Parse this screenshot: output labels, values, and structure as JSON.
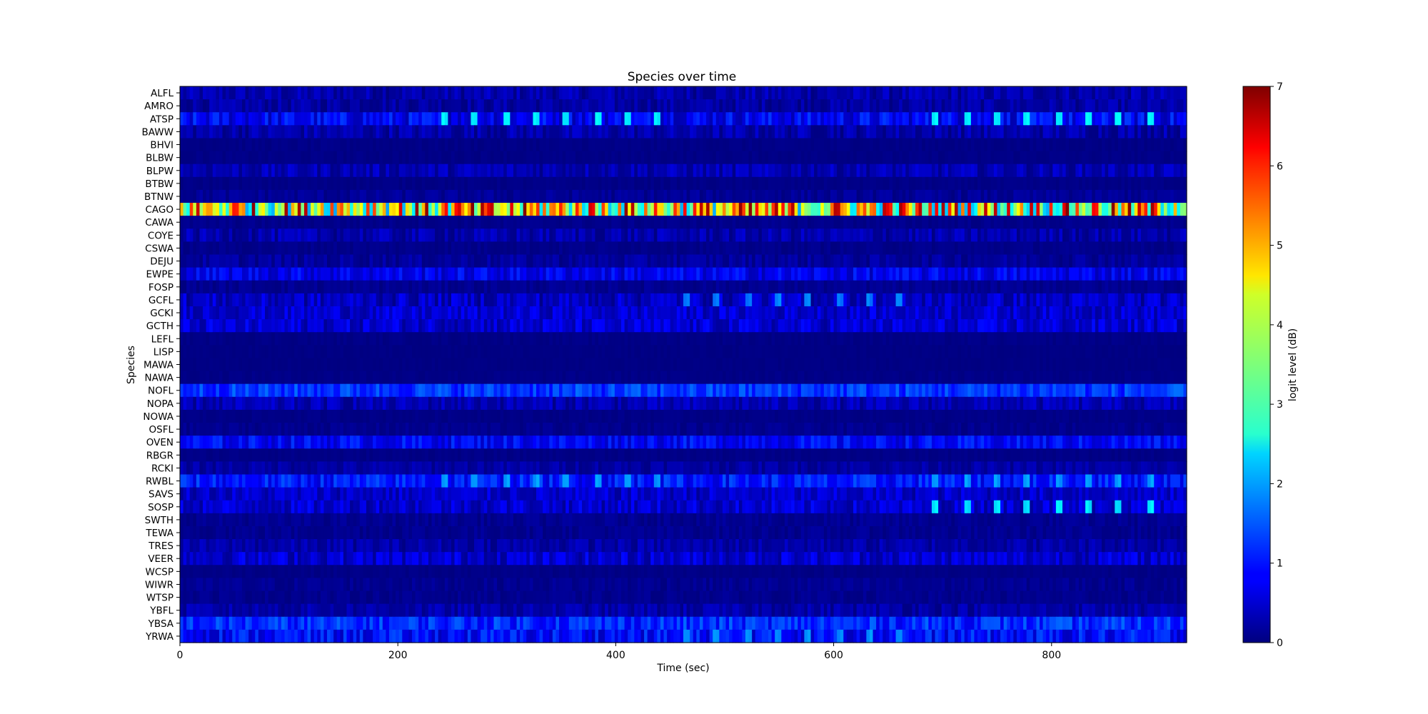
{
  "chart_data": {
    "type": "heatmap",
    "title": "Species over time",
    "xlabel": "Time (sec)",
    "ylabel": "Species",
    "xlim": [
      0,
      924
    ],
    "x_ticks": [
      0,
      200,
      400,
      600,
      800
    ],
    "bin_seconds": 3,
    "species": [
      "ALFL",
      "AMRO",
      "ATSP",
      "BAWW",
      "BHVI",
      "BLBW",
      "BLPW",
      "BTBW",
      "BTNW",
      "CAGO",
      "CAWA",
      "COYE",
      "CSWA",
      "DEJU",
      "EWPE",
      "FOSP",
      "GCFL",
      "GCKI",
      "GCTH",
      "LEFL",
      "LISP",
      "MAWA",
      "NAWA",
      "NOFL",
      "NOPA",
      "NOWA",
      "OSFL",
      "OVEN",
      "RBGR",
      "RCKI",
      "RWBL",
      "SAVS",
      "SOSP",
      "SWTH",
      "TEWA",
      "TRES",
      "VEER",
      "WCSP",
      "WIWR",
      "WTSP",
      "YBFL",
      "YBSA",
      "YRWA"
    ],
    "mean_level": [
      0.3,
      0.25,
      0.8,
      0.3,
      0.05,
      0.05,
      0.35,
      0.05,
      0.15,
      4.5,
      0.08,
      0.3,
      0.08,
      0.2,
      0.75,
      0.12,
      0.45,
      0.55,
      0.55,
      0.05,
      0.03,
      0.03,
      0.05,
      1.25,
      0.35,
      0.05,
      0.1,
      0.85,
      0.05,
      0.25,
      1.0,
      0.5,
      0.55,
      0.12,
      0.12,
      0.28,
      0.55,
      0.05,
      0.12,
      0.1,
      0.28,
      1.15,
      0.9
    ],
    "variation": [
      0.3,
      0.25,
      0.5,
      0.3,
      0.05,
      0.05,
      0.3,
      0.05,
      0.15,
      2.5,
      0.08,
      0.3,
      0.08,
      0.2,
      0.4,
      0.12,
      0.4,
      0.35,
      0.4,
      0.05,
      0.03,
      0.03,
      0.05,
      0.4,
      0.3,
      0.05,
      0.1,
      0.4,
      0.05,
      0.2,
      0.45,
      0.35,
      0.4,
      0.12,
      0.12,
      0.25,
      0.4,
      0.05,
      0.12,
      0.1,
      0.25,
      0.45,
      0.5
    ],
    "peaks": [
      {
        "species": "ATSP",
        "times": [
          243,
          272,
          300,
          328,
          356,
          384,
          412,
          440,
          695,
          723,
          751,
          779,
          807,
          835,
          863,
          891
        ],
        "level": 2.4
      },
      {
        "species": "RWBL",
        "times": [
          243,
          272,
          300,
          328,
          356,
          384,
          412,
          440,
          695,
          723,
          751,
          779,
          807,
          835,
          863,
          891
        ],
        "level": 1.8
      },
      {
        "species": "SOSP",
        "times": [
          695,
          723,
          751,
          779,
          807,
          835,
          863,
          891
        ],
        "level": 2.3
      },
      {
        "species": "GCFL",
        "times": [
          465,
          493,
          522,
          550,
          578,
          606,
          634,
          662
        ],
        "level": 1.6
      },
      {
        "species": "YRWA",
        "times": [
          465,
          493,
          522,
          550,
          578,
          606,
          634,
          662
        ],
        "level": 1.7
      }
    ],
    "colorbar": {
      "label": "logit level (dB)",
      "range": [
        0,
        7
      ],
      "ticks": [
        0,
        1,
        2,
        3,
        4,
        5,
        6,
        7
      ],
      "colormap": "jet"
    }
  }
}
